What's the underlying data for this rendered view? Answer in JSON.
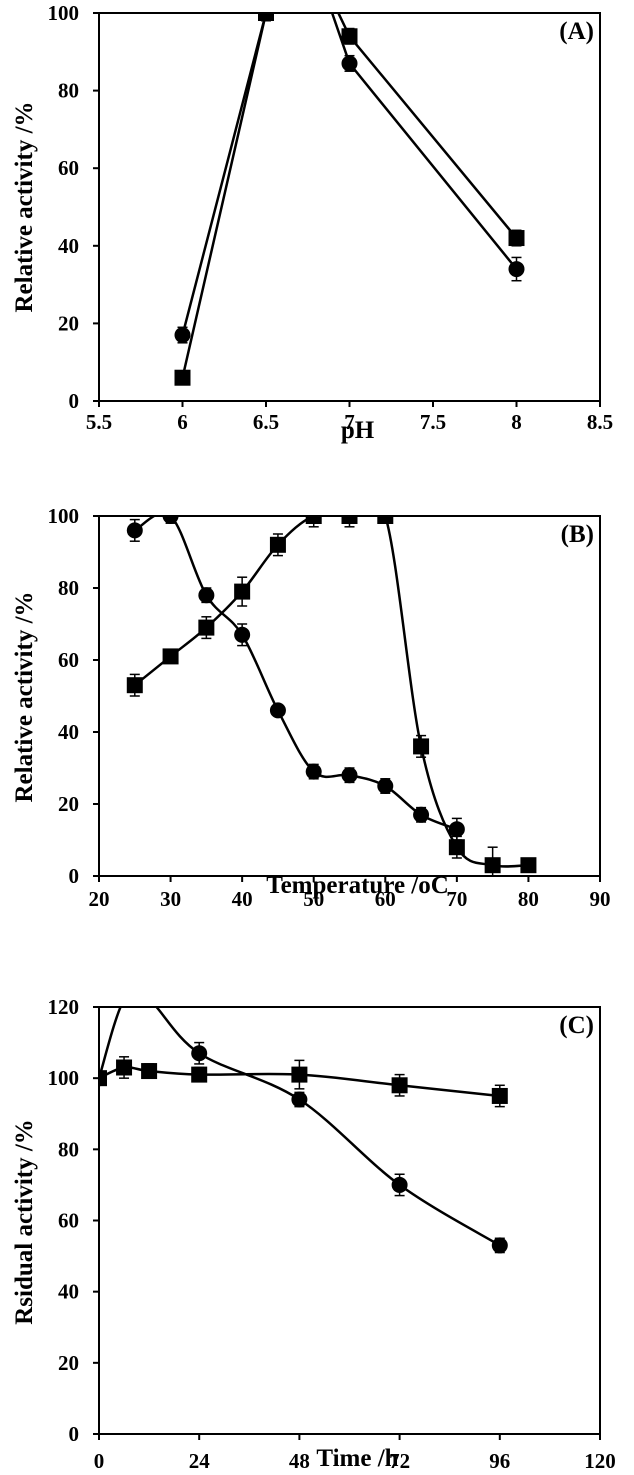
{
  "chart_data": [
    {
      "panel_label": "(A)",
      "type": "line",
      "xlabel": "pH",
      "ylabel": "Relative activity /%",
      "xlim": [
        5.5,
        8.5
      ],
      "ylim": [
        0,
        100
      ],
      "xticks": [
        5.5,
        6,
        6.5,
        7,
        7.5,
        8,
        8.5
      ],
      "yticks": [
        0,
        20,
        40,
        60,
        80,
        100
      ],
      "xtick_labels": [
        "5.5",
        "6",
        "6.5",
        "7",
        "7.5",
        "8",
        "8.5"
      ],
      "ytick_labels": [
        "0",
        "20",
        "40",
        "60",
        "80",
        "100"
      ],
      "curve_peak_x": 6.8,
      "series": [
        {
          "marker": "circle",
          "x": [
            6,
            6.5,
            7,
            8
          ],
          "y": [
            17,
            100,
            87,
            34
          ],
          "err": [
            2,
            2,
            2,
            3
          ]
        },
        {
          "marker": "square",
          "x": [
            6,
            6.5,
            7,
            8
          ],
          "y": [
            6,
            100,
            94,
            42
          ],
          "err": [
            1,
            2,
            2,
            2
          ]
        }
      ]
    },
    {
      "panel_label": "(B)",
      "type": "line",
      "xlabel": "Temperature /oC",
      "ylabel": "Relative activity /%",
      "xlim": [
        20,
        90
      ],
      "ylim": [
        0,
        100
      ],
      "xticks": [
        20,
        30,
        40,
        50,
        60,
        70,
        80,
        90
      ],
      "yticks": [
        0,
        20,
        40,
        60,
        80,
        100
      ],
      "xtick_labels": [
        "20",
        "30",
        "40",
        "50",
        "60",
        "70",
        "80",
        "90"
      ],
      "ytick_labels": [
        "0",
        "20",
        "40",
        "60",
        "80",
        "100"
      ],
      "series": [
        {
          "marker": "circle",
          "x": [
            25,
            30,
            35,
            40,
            45,
            50,
            55,
            60,
            65,
            70
          ],
          "y": [
            96,
            100,
            78,
            67,
            46,
            29,
            28,
            25,
            17,
            13
          ],
          "err": [
            3,
            2,
            2,
            3,
            1,
            2,
            2,
            2,
            2,
            3
          ]
        },
        {
          "marker": "square",
          "x": [
            25,
            30,
            35,
            40,
            45,
            50,
            55,
            60,
            65,
            70,
            75,
            80
          ],
          "y": [
            53,
            61,
            69,
            79,
            92,
            100,
            100,
            100,
            36,
            8,
            3,
            3
          ],
          "err": [
            3,
            1,
            3,
            4,
            3,
            3,
            3,
            1,
            3,
            3,
            5,
            1
          ]
        }
      ]
    },
    {
      "panel_label": "(C)",
      "type": "line",
      "xlabel": "Time /h",
      "ylabel": "Rsidual activity /%",
      "xlim": [
        0,
        120
      ],
      "ylim": [
        0,
        120
      ],
      "xticks": [
        0,
        24,
        48,
        72,
        96,
        120
      ],
      "yticks": [
        0,
        20,
        40,
        60,
        80,
        100,
        120
      ],
      "xtick_labels": [
        "0",
        "24",
        "48",
        "72",
        "96",
        "120"
      ],
      "ytick_labels": [
        "0",
        "20",
        "40",
        "60",
        "80",
        "100",
        "120"
      ],
      "series": [
        {
          "marker": "circle",
          "x": [
            0,
            6,
            12,
            24,
            48,
            72,
            96
          ],
          "y": [
            100,
            122,
            122,
            107,
            94,
            70,
            53
          ],
          "err": [
            1,
            2,
            2,
            3,
            2,
            3,
            2
          ]
        },
        {
          "marker": "square",
          "x": [
            0,
            6,
            12,
            24,
            48,
            72,
            96
          ],
          "y": [
            100,
            103,
            102,
            101,
            101,
            98,
            95
          ],
          "err": [
            1,
            3,
            2,
            2,
            4,
            3,
            3
          ]
        }
      ]
    }
  ]
}
